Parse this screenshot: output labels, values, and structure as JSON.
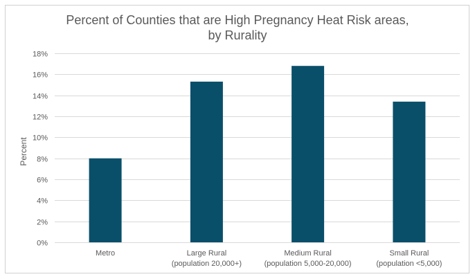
{
  "chart_data": {
    "type": "bar",
    "title_lines": [
      "Percent of Counties that are High Pregnancy Heat Risk areas,",
      "by Rurality"
    ],
    "categories": [
      [
        "Metro"
      ],
      [
        "Large Rural",
        "(population 20,000+)"
      ],
      [
        "Medium Rural",
        "(population 5,000-20,000)"
      ],
      [
        "Small Rural",
        "(population <5,000)"
      ]
    ],
    "values": [
      8.0,
      15.3,
      16.8,
      13.4
    ],
    "ylabel": "Percent",
    "ylim": [
      0,
      18
    ],
    "yticks": [
      "0%",
      "2%",
      "4%",
      "6%",
      "8%",
      "10%",
      "12%",
      "14%",
      "16%",
      "18%"
    ],
    "grid": true,
    "bar_color": "#0a4f6a",
    "grid_color": "#d9d9d9"
  }
}
